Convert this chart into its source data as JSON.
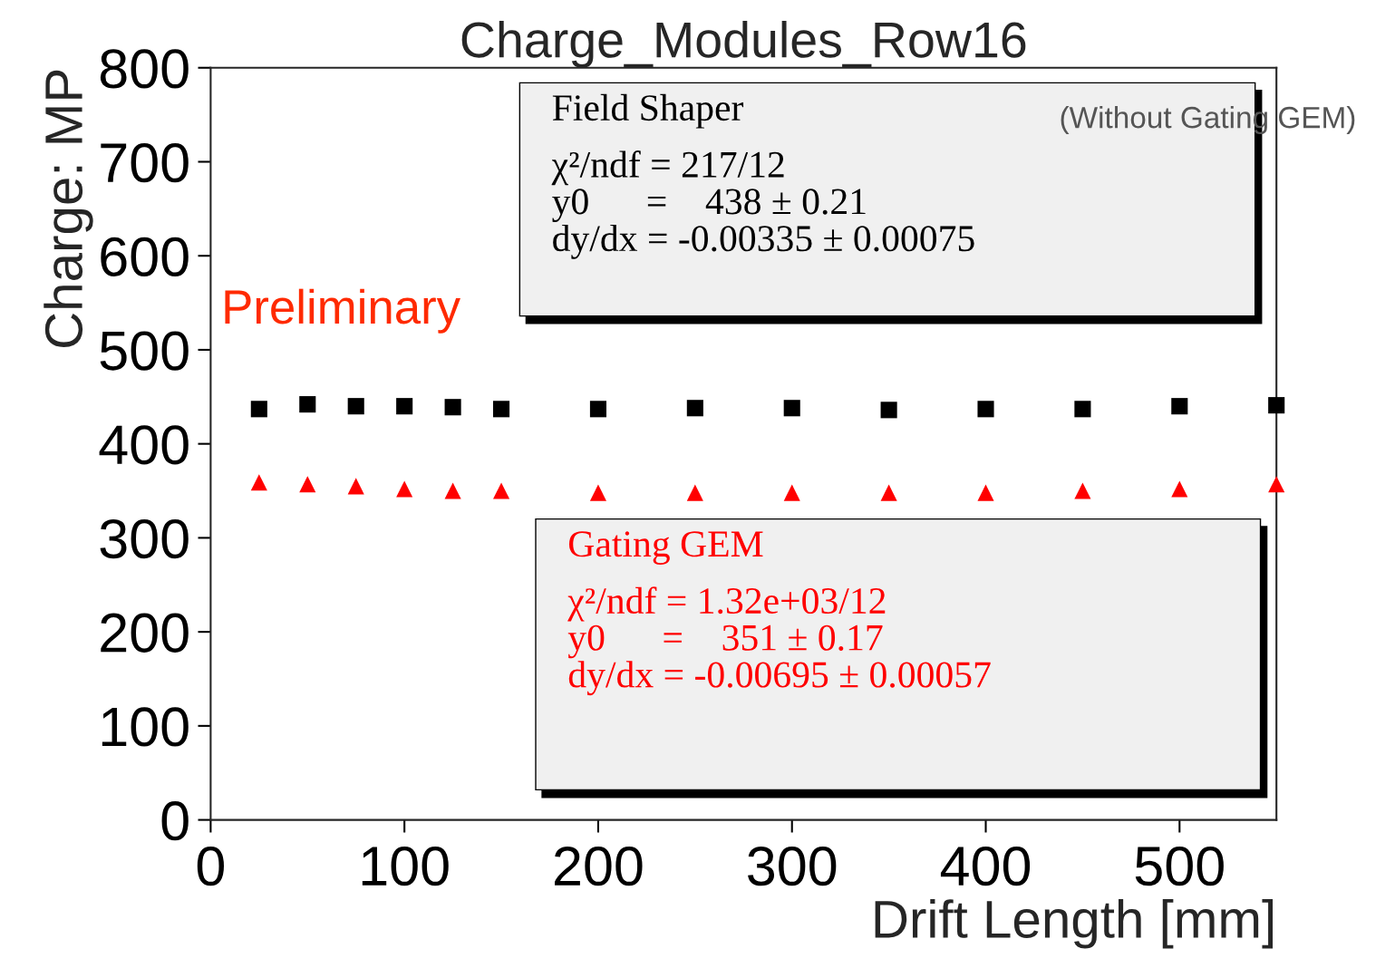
{
  "chart_data": {
    "type": "scatter",
    "title": "Charge_Modules_Row16",
    "xlabel": "Drift Length [mm]",
    "ylabel": "Charge: MP",
    "x": [
      25,
      50,
      75,
      100,
      125,
      150,
      200,
      250,
      300,
      350,
      400,
      450,
      500,
      550
    ],
    "series": [
      {
        "name": "Field Shaper",
        "color": "#000000",
        "marker": "square",
        "values": [
          437,
          442,
          440,
          440,
          439,
          437,
          437,
          438,
          438,
          436,
          437,
          437,
          440,
          441
        ]
      },
      {
        "name": "Gating GEM",
        "color": "#ff0000",
        "marker": "triangle",
        "values": [
          359,
          357,
          355,
          352,
          350,
          350,
          348,
          348,
          348,
          348,
          348,
          350,
          352,
          357
        ]
      }
    ],
    "annotations": [
      "Preliminary",
      "(Without Gating GEM)",
      "χ²/ndf = 217/12\ny0      =    438 ± 0.21\ndy/dx = -0.00335 ± 0.00075",
      "χ²/ndf = 1.32e+03/12\ny0      =    351 ± 0.17\ndy/dx = -0.00695 ± 0.00057"
    ],
    "xlim": [
      0,
      550
    ],
    "ylim": [
      0,
      800
    ],
    "xticks": [
      0,
      100,
      200,
      300,
      400,
      500
    ],
    "yticks": [
      0,
      100,
      200,
      300,
      400,
      500,
      600,
      700,
      800
    ],
    "grid": false,
    "legend": false
  }
}
